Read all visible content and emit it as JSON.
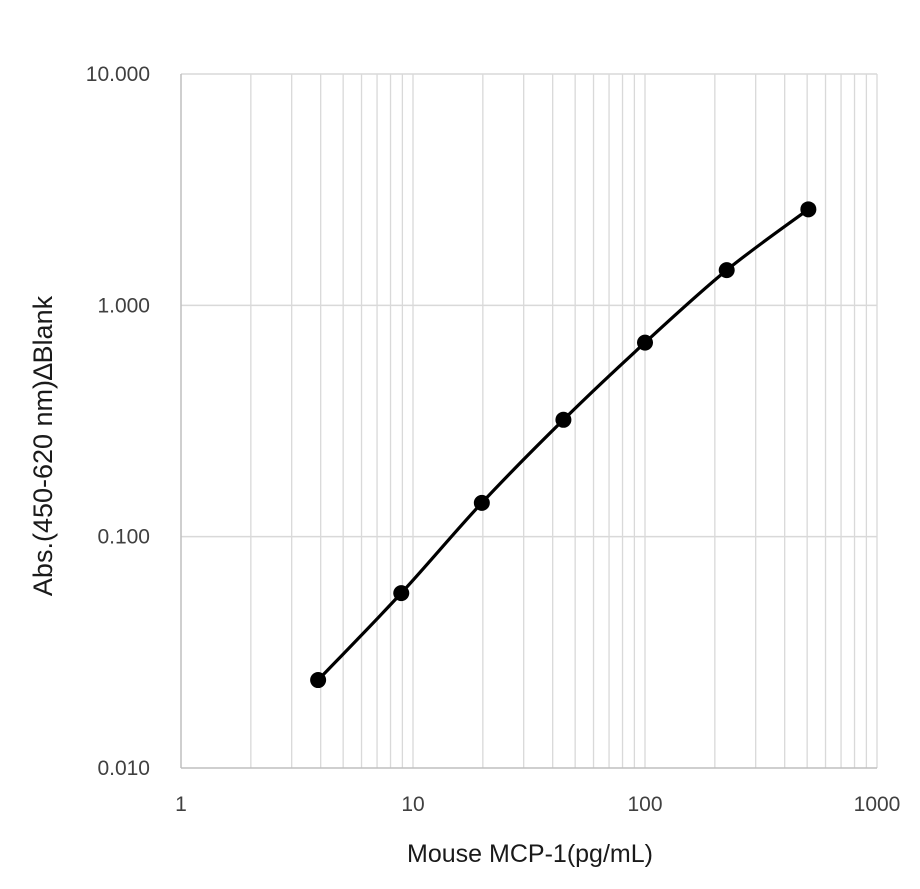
{
  "chart_data": {
    "type": "line",
    "xlabel": "Mouse MCP-1(pg/mL)",
    "ylabel": "Abs.(450-620 nm)∆Blank",
    "x_scale": "log",
    "y_scale": "log",
    "xlim": [
      1,
      1000
    ],
    "ylim": [
      0.01,
      10
    ],
    "x_ticks": [
      "1",
      "10",
      "100",
      "1000"
    ],
    "y_ticks": [
      "0.010",
      "0.100",
      "1.000",
      "10.000"
    ],
    "grid": true,
    "legend": "none",
    "series": [
      {
        "x": [
          3.9,
          8.9,
          19.8,
          44.5,
          100,
          225,
          506
        ],
        "y": [
          0.024,
          0.057,
          0.14,
          0.32,
          0.69,
          1.42,
          2.6
        ],
        "color": "#000000",
        "marker": "circle"
      }
    ]
  }
}
